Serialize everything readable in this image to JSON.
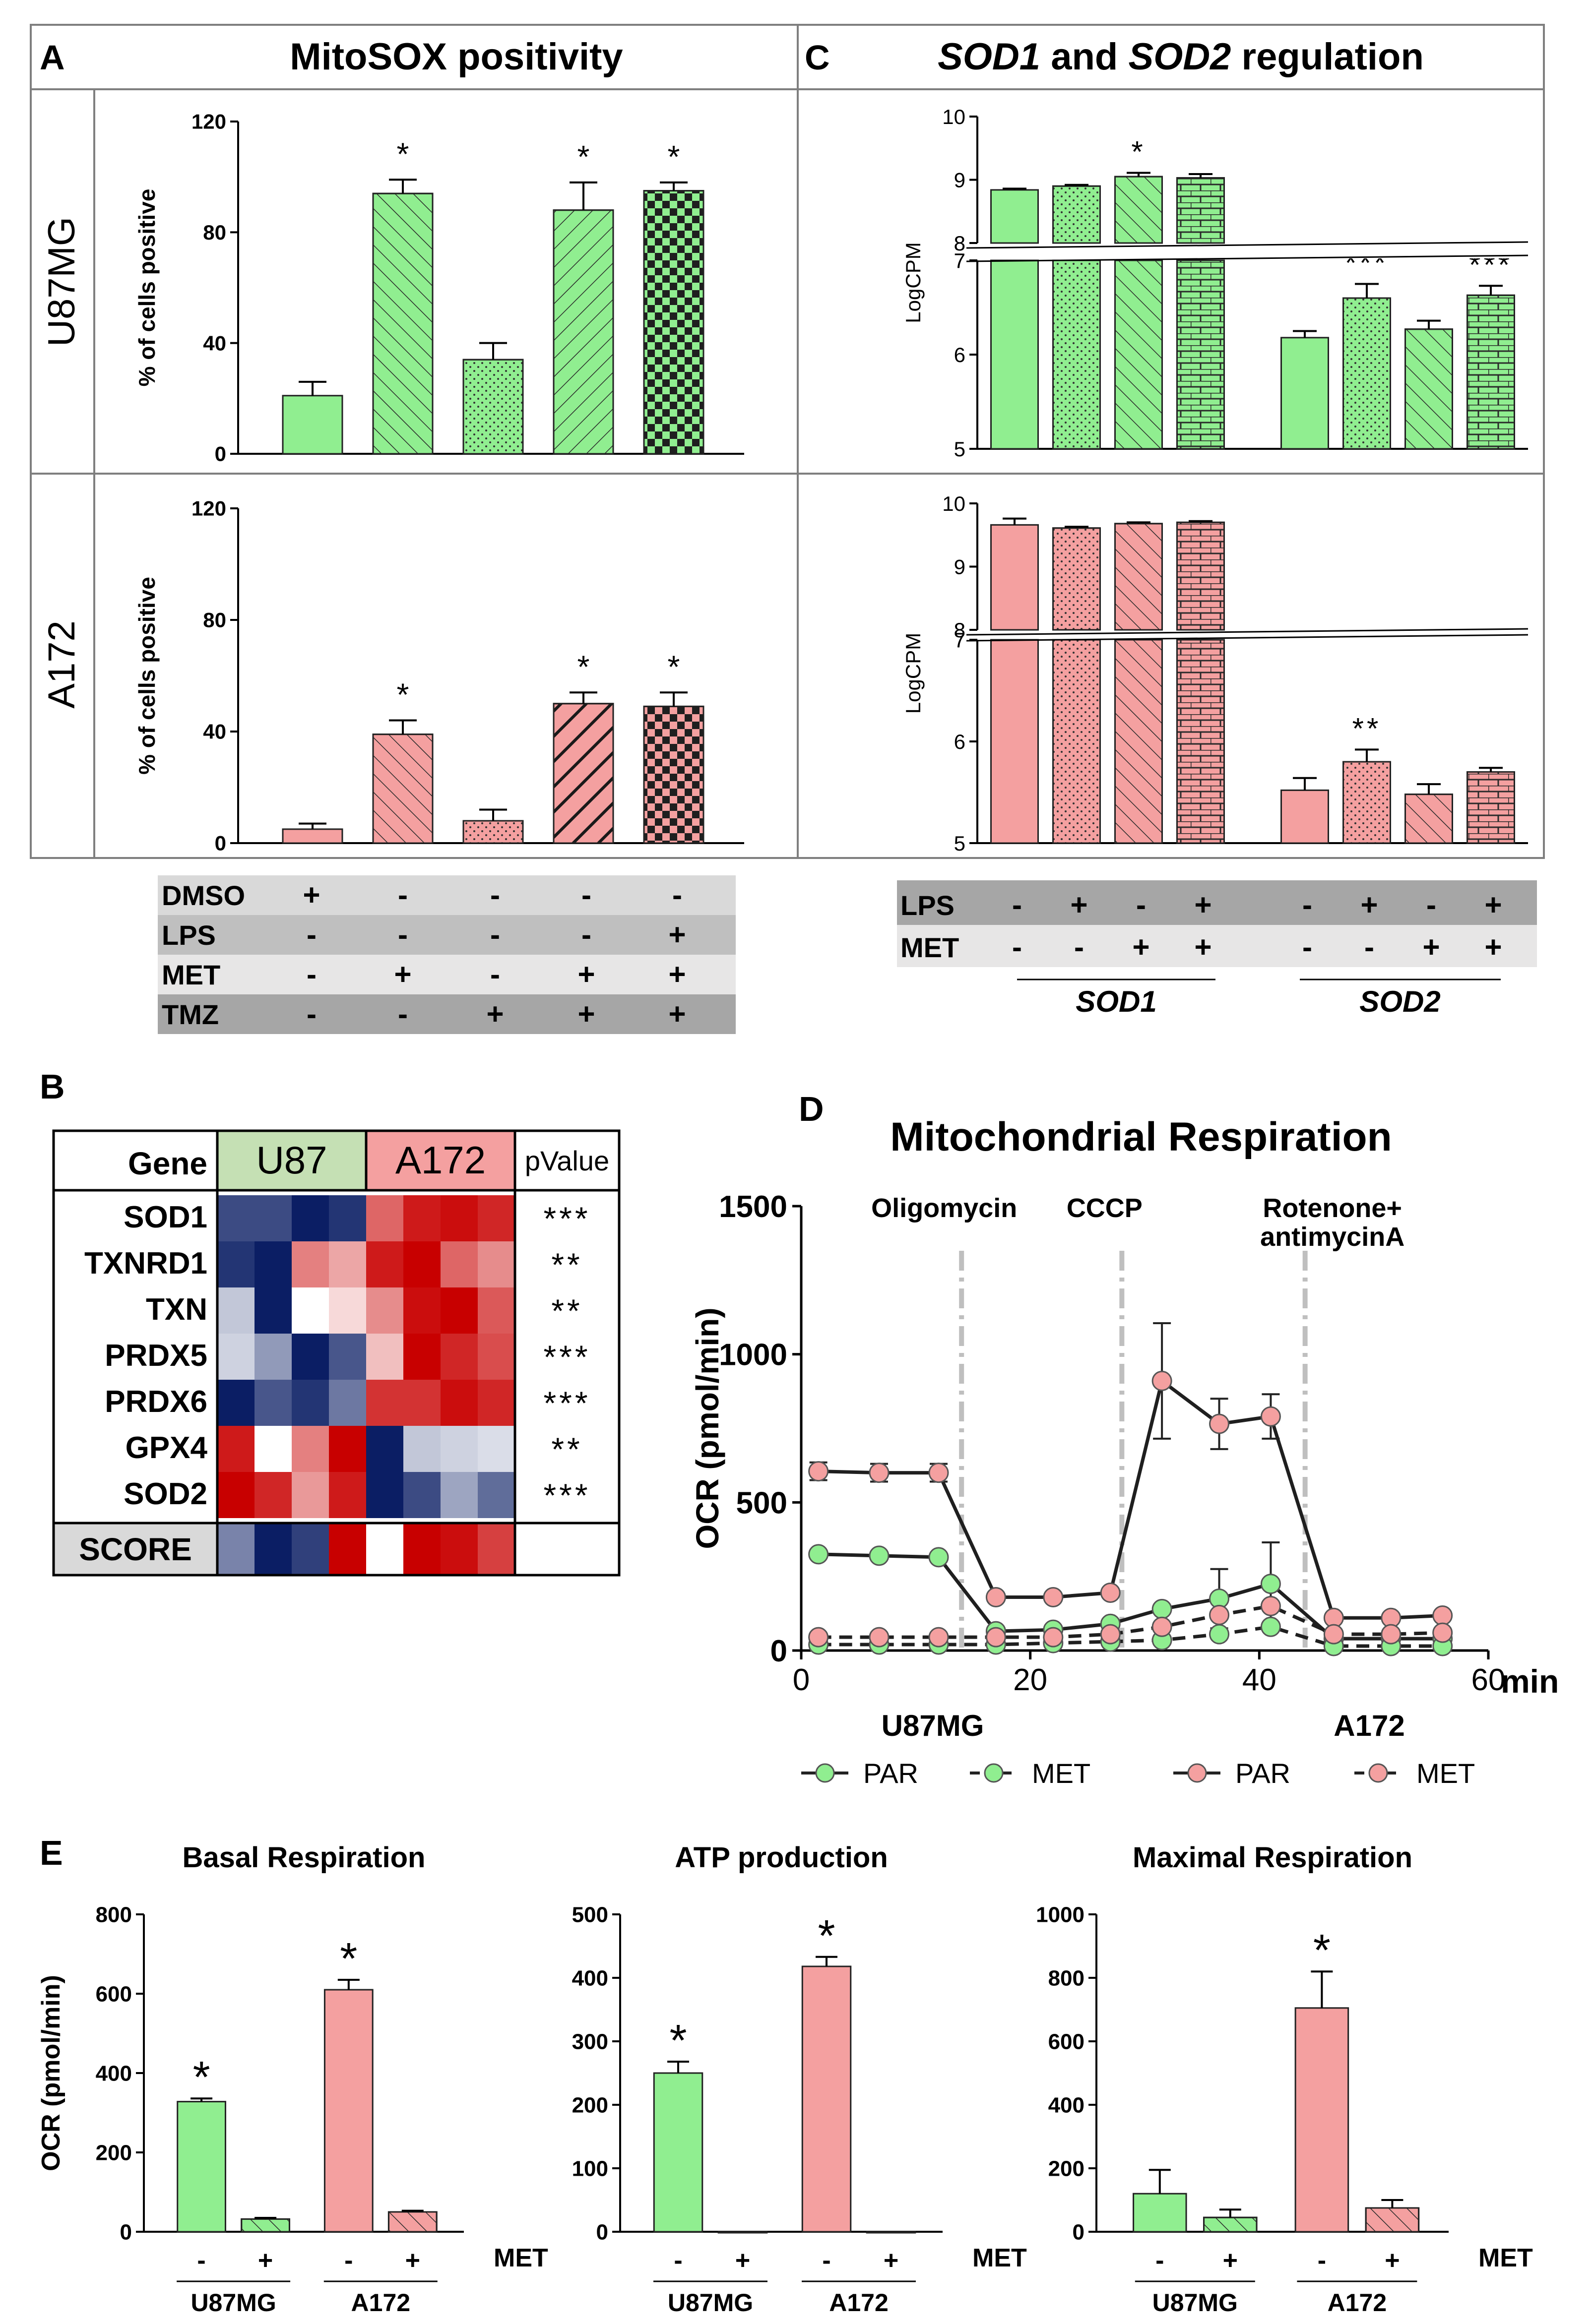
{
  "colors": {
    "green": "#90EE90",
    "pink": "#F4A0A0",
    "heat_blue": "#0B1E64",
    "heat_red": "#C80000",
    "heat_white": "#FFFFFF",
    "gene_green_header": "#C5E0B4",
    "gene_pink_header": "#F4A0A0",
    "grey_dark": "#A6A6A6",
    "grey_light": "#D9D9D9",
    "line_grey": "#404040"
  },
  "panel_a": {
    "letter": "A",
    "title": "MitoSOX positivity",
    "row_labels": [
      "U87MG",
      "A172"
    ],
    "treatment_table": {
      "rows": [
        {
          "label": "DMSO",
          "signs": [
            "+",
            "-",
            "-",
            "-",
            "-"
          ]
        },
        {
          "label": "LPS",
          "signs": [
            "-",
            "-",
            "-",
            "-",
            "+"
          ]
        },
        {
          "label": "MET",
          "signs": [
            "-",
            "+",
            "-",
            "+",
            "+"
          ]
        },
        {
          "label": "TMZ",
          "signs": [
            "-",
            "-",
            "+",
            "+",
            "+"
          ]
        }
      ]
    }
  },
  "panel_c": {
    "letter": "C",
    "title_parts": [
      "SOD1",
      " and ",
      "SOD2",
      " regulation"
    ],
    "table": {
      "rows": [
        {
          "label": "LPS",
          "signs": [
            "-",
            "+",
            "-",
            "+",
            "-",
            "+",
            "-",
            "+"
          ]
        },
        {
          "label": "MET",
          "signs": [
            "-",
            "-",
            "+",
            "+",
            "-",
            "-",
            "+",
            "+"
          ]
        }
      ],
      "groups": [
        "SOD1",
        "SOD2"
      ]
    }
  },
  "panel_b": {
    "letter": "B",
    "headers": {
      "gene": "Gene",
      "u87": "U87",
      "a172": "A172",
      "pvalue": "pValue"
    },
    "genes": [
      "SOD1",
      "TXNRD1",
      "TXN",
      "PRDX5",
      "PRDX6",
      "GPX4",
      "SOD2"
    ],
    "pvalues": [
      "***",
      "**",
      "**",
      "***",
      "***",
      "**",
      "***"
    ],
    "score_label": "SCORE",
    "heatmap_values": [
      [
        -0.8,
        -0.8,
        -1.0,
        -0.9,
        0.6,
        0.9,
        0.95,
        0.85
      ],
      [
        -0.9,
        -1.0,
        0.5,
        0.35,
        0.9,
        1.0,
        0.6,
        0.45
      ],
      [
        -0.25,
        -1.0,
        0.0,
        0.15,
        0.45,
        0.95,
        1.0,
        0.65
      ],
      [
        -0.2,
        -0.45,
        -1.0,
        -0.75,
        0.25,
        1.0,
        0.85,
        0.7
      ],
      [
        -1.0,
        -0.75,
        -0.9,
        -0.6,
        0.8,
        0.8,
        0.95,
        0.85
      ],
      [
        0.9,
        0.0,
        0.5,
        1.0,
        -1.0,
        -0.25,
        -0.2,
        -0.15
      ],
      [
        1.0,
        0.85,
        0.4,
        0.9,
        -1.0,
        -0.8,
        -0.4,
        -0.65
      ]
    ],
    "score_values": [
      -0.55,
      -1.0,
      -0.85,
      1.0,
      0.0,
      1.0,
      0.95,
      0.75
    ]
  },
  "panel_d": {
    "letter": "D",
    "legend": {
      "groups": [
        "U87MG",
        "A172"
      ],
      "entries": [
        "PAR",
        "MET",
        "PAR",
        "MET"
      ]
    },
    "x_unit": "min"
  },
  "panel_e": {
    "letter": "E",
    "sign_labels": [
      "-",
      "+",
      "-",
      "+"
    ],
    "met_label": "MET",
    "group_labels": [
      "U87MG",
      "A172"
    ]
  },
  "chart_data": [
    {
      "id": "A_U87MG",
      "type": "bar",
      "title": "MitoSOX positivity",
      "ylabel": "% of cells positive",
      "ylim": [
        0,
        120
      ],
      "yticks": [
        0,
        40,
        80,
        120
      ],
      "series_color": "green",
      "values": [
        21,
        94,
        34,
        88,
        95
      ],
      "errors": [
        5,
        5,
        6,
        10,
        3
      ],
      "patterns": [
        "solid",
        "diag-back",
        "dots",
        "diag-fwd",
        "check"
      ],
      "significance": [
        "",
        "*",
        "",
        "*",
        "*"
      ]
    },
    {
      "id": "A_A172",
      "type": "bar",
      "ylabel": "% of cells positive",
      "ylim": [
        0,
        120
      ],
      "yticks": [
        0,
        40,
        80,
        120
      ],
      "series_color": "pink",
      "values": [
        5,
        39,
        8,
        50,
        49
      ],
      "errors": [
        2,
        5,
        4,
        4,
        5
      ],
      "patterns": [
        "solid",
        "diag-back",
        "dots",
        "diag-fwd-thick",
        "check"
      ],
      "significance": [
        "",
        "*",
        "",
        "*",
        "*"
      ]
    },
    {
      "id": "C_U87MG",
      "type": "bar",
      "ylabel": "LogCPM",
      "ylim_lower": [
        5,
        7
      ],
      "ylim_upper": [
        8,
        10
      ],
      "yticks_lower": [
        5,
        6,
        7
      ],
      "yticks_upper": [
        8,
        9,
        10
      ],
      "series_color": "green",
      "categories": [
        "SOD1",
        "SOD1",
        "SOD1",
        "SOD1",
        "SOD2",
        "SOD2",
        "SOD2",
        "SOD2"
      ],
      "values": [
        8.84,
        8.9,
        9.05,
        9.03,
        6.18,
        6.6,
        6.27,
        6.63
      ],
      "errors": [
        0.02,
        0.02,
        0.06,
        0.06,
        0.07,
        0.15,
        0.09,
        0.1
      ],
      "patterns": [
        "solid",
        "dots",
        "diag-back",
        "brick",
        "solid",
        "dots",
        "diag-back",
        "brick"
      ],
      "significance": [
        "",
        "",
        "*",
        "",
        "",
        "***",
        "",
        "***"
      ]
    },
    {
      "id": "C_A172",
      "type": "bar",
      "ylabel": "LogCPM",
      "ylim_lower": [
        5,
        7
      ],
      "ylim_upper": [
        8,
        10
      ],
      "yticks_lower": [
        5,
        6,
        7
      ],
      "yticks_upper": [
        8,
        9,
        10
      ],
      "series_color": "pink",
      "categories": [
        "SOD1",
        "SOD1",
        "SOD1",
        "SOD1",
        "SOD2",
        "SOD2",
        "SOD2",
        "SOD2"
      ],
      "values": [
        9.66,
        9.61,
        9.68,
        9.7,
        5.52,
        5.8,
        5.48,
        5.7
      ],
      "errors": [
        0.1,
        0.02,
        0.02,
        0.02,
        0.12,
        0.12,
        0.1,
        0.04
      ],
      "patterns": [
        "solid",
        "dots",
        "diag-back",
        "brick",
        "solid",
        "dots",
        "diag-back",
        "brick"
      ],
      "significance": [
        "",
        "",
        "",
        "",
        "",
        "**",
        "",
        ""
      ]
    },
    {
      "id": "D",
      "type": "line",
      "title": "Mitochondrial Respiration",
      "xlabel": "min",
      "ylabel": "OCR (pmol/min)",
      "xlim": [
        0,
        60
      ],
      "xticks": [
        0,
        20,
        40,
        60
      ],
      "ylim": [
        0,
        1500
      ],
      "yticks": [
        0,
        500,
        1000,
        1500
      ],
      "injections": [
        {
          "x": 14,
          "label": [
            "Oligomycin"
          ]
        },
        {
          "x": 28,
          "label": [
            "CCCP"
          ]
        },
        {
          "x": 44,
          "label": [
            "Rotenone+",
            "antimycinA"
          ]
        }
      ],
      "x": [
        1.5,
        6.8,
        12,
        17,
        22,
        27,
        31.5,
        36.5,
        41,
        46.5,
        51.5,
        56
      ],
      "series": [
        {
          "name": "U87MG PAR",
          "color": "green",
          "dash": false,
          "values": [
            325,
            320,
            315,
            65,
            70,
            90,
            140,
            175,
            225,
            40,
            40,
            40
          ],
          "errors": [
            0,
            0,
            0,
            0,
            0,
            0,
            0,
            100,
            140,
            0,
            0,
            0
          ]
        },
        {
          "name": "U87MG MET",
          "color": "green",
          "dash": true,
          "values": [
            20,
            20,
            20,
            20,
            25,
            30,
            35,
            55,
            80,
            15,
            15,
            15
          ],
          "errors": [
            0,
            0,
            0,
            0,
            0,
            0,
            0,
            0,
            0,
            0,
            0,
            0
          ]
        },
        {
          "name": "A172 PAR",
          "color": "pink",
          "dash": false,
          "values": [
            605,
            600,
            600,
            180,
            180,
            195,
            910,
            765,
            790,
            110,
            110,
            118
          ],
          "errors": [
            30,
            30,
            30,
            0,
            0,
            0,
            195,
            85,
            75,
            0,
            0,
            0
          ]
        },
        {
          "name": "A172 MET",
          "color": "pink",
          "dash": true,
          "values": [
            45,
            45,
            45,
            45,
            45,
            55,
            80,
            120,
            150,
            55,
            55,
            60
          ],
          "errors": [
            0,
            0,
            0,
            0,
            0,
            0,
            0,
            0,
            0,
            0,
            0,
            0
          ]
        }
      ]
    },
    {
      "id": "E_basal",
      "type": "bar",
      "title": "Basal Respiration",
      "ylabel": "OCR (pmol/min)",
      "ylim": [
        0,
        800
      ],
      "yticks": [
        0,
        200,
        400,
        600,
        800
      ],
      "categories": [
        "U87MG -",
        "U87MG +",
        "A172 -",
        "A172 +"
      ],
      "values": [
        328,
        32,
        610,
        50
      ],
      "errors": [
        8,
        3,
        25,
        3
      ],
      "colors": [
        "green",
        "green",
        "pink",
        "pink"
      ],
      "patterns": [
        "solid",
        "diag-back",
        "solid",
        "diag-back"
      ],
      "significance": [
        "*",
        "",
        "*",
        ""
      ]
    },
    {
      "id": "E_atp",
      "type": "bar",
      "title": "ATP production",
      "ylim": [
        0,
        500
      ],
      "yticks": [
        0,
        100,
        200,
        300,
        400,
        500
      ],
      "categories": [
        "U87MG -",
        "U87MG +",
        "A172 -",
        "A172 +"
      ],
      "values": [
        250,
        0,
        418,
        0
      ],
      "errors": [
        18,
        0,
        15,
        0
      ],
      "colors": [
        "green",
        "green",
        "pink",
        "pink"
      ],
      "patterns": [
        "solid",
        "diag-back",
        "solid",
        "diag-back"
      ],
      "significance": [
        "*",
        "",
        "*",
        ""
      ]
    },
    {
      "id": "E_maximal",
      "type": "bar",
      "title": "Maximal Respiration",
      "ylim": [
        0,
        1000
      ],
      "yticks": [
        0,
        200,
        400,
        600,
        800,
        1000
      ],
      "categories": [
        "U87MG -",
        "U87MG +",
        "A172 -",
        "A172 +"
      ],
      "values": [
        120,
        45,
        705,
        75
      ],
      "errors": [
        75,
        25,
        115,
        25
      ],
      "colors": [
        "green",
        "green",
        "pink",
        "pink"
      ],
      "patterns": [
        "solid",
        "diag-back",
        "solid",
        "diag-back"
      ],
      "significance": [
        "",
        "",
        "*",
        ""
      ]
    }
  ]
}
